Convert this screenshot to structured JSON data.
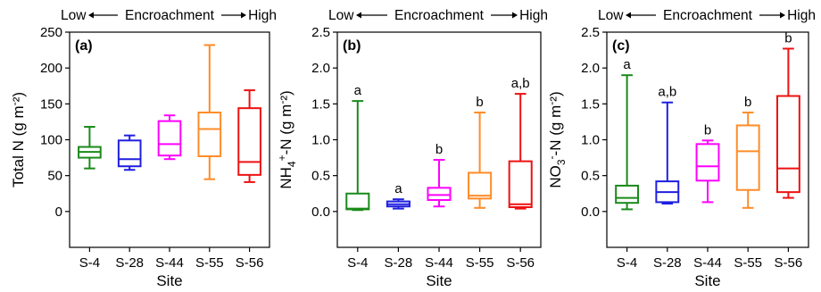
{
  "chart_data": [
    {
      "type": "box",
      "panel_label": "(a)",
      "encroachment": {
        "low": "Low",
        "text": "Encroachment",
        "high": "High"
      },
      "xlabel": "Site",
      "ylabel": "Total N (g m⁻²)",
      "ylim": [
        -50,
        250
      ],
      "yticks": [
        "0",
        "50",
        "100",
        "150",
        "200",
        "250"
      ],
      "ytick_values": [
        0,
        50,
        100,
        150,
        200,
        250
      ],
      "categories": [
        "S-4",
        "S-28",
        "S-44",
        "S-55",
        "S-56"
      ],
      "colors": [
        "#1a8a1a",
        "#1f1fe0",
        "#ff00ff",
        "#ff8c28",
        "#ee1111"
      ],
      "boxes": [
        {
          "whislo": 60,
          "q1": 75,
          "med": 83,
          "q3": 90,
          "whishi": 118
        },
        {
          "whislo": 58,
          "q1": 63,
          "med": 73,
          "q3": 99,
          "whishi": 106
        },
        {
          "whislo": 73,
          "q1": 78,
          "med": 94,
          "q3": 126,
          "whishi": 134
        },
        {
          "whislo": 45,
          "q1": 77,
          "med": 115,
          "q3": 138,
          "whishi": 232
        },
        {
          "whislo": 41,
          "q1": 51,
          "med": 69,
          "q3": 144,
          "whishi": 169
        }
      ],
      "significance": [
        "",
        "",
        "",
        "",
        ""
      ]
    },
    {
      "type": "box",
      "panel_label": "(b)",
      "encroachment": {
        "low": "Low",
        "text": "Encroachment",
        "high": "High"
      },
      "xlabel": "Site",
      "ylabel": "NH₄⁺-N (g m⁻²)",
      "ylim": [
        -0.5,
        2.5
      ],
      "yticks": [
        "0.0",
        "0.5",
        "1.0",
        "1.5",
        "2.0",
        "2.5"
      ],
      "ytick_values": [
        0,
        0.5,
        1.0,
        1.5,
        2.0,
        2.5
      ],
      "categories": [
        "S-4",
        "S-28",
        "S-44",
        "S-55",
        "S-56"
      ],
      "colors": [
        "#1a8a1a",
        "#1f1fe0",
        "#ff00ff",
        "#ff8c28",
        "#ee1111"
      ],
      "boxes": [
        {
          "whislo": 0.02,
          "q1": 0.03,
          "med": 0.04,
          "q3": 0.25,
          "whishi": 1.54
        },
        {
          "whislo": 0.04,
          "q1": 0.07,
          "med": 0.1,
          "q3": 0.14,
          "whishi": 0.17
        },
        {
          "whislo": 0.07,
          "q1": 0.16,
          "med": 0.23,
          "q3": 0.33,
          "whishi": 0.72
        },
        {
          "whislo": 0.05,
          "q1": 0.18,
          "med": 0.22,
          "q3": 0.54,
          "whishi": 1.38
        },
        {
          "whislo": 0.04,
          "q1": 0.06,
          "med": 0.1,
          "q3": 0.7,
          "whishi": 1.64
        }
      ],
      "significance": [
        "a",
        "a",
        "b",
        "b",
        "a,b"
      ]
    },
    {
      "type": "box",
      "panel_label": "(c)",
      "encroachment": {
        "low": "Low",
        "text": "Encroachment",
        "high": "High"
      },
      "xlabel": "Site",
      "ylabel": "NO₃⁻-N (g m⁻²)",
      "ylim": [
        -0.5,
        2.5
      ],
      "yticks": [
        "0.0",
        "0.5",
        "1.0",
        "1.5",
        "2.0",
        "2.5"
      ],
      "ytick_values": [
        0,
        0.5,
        1.0,
        1.5,
        2.0,
        2.5
      ],
      "categories": [
        "S-4",
        "S-28",
        "S-44",
        "S-55",
        "S-56"
      ],
      "colors": [
        "#1a8a1a",
        "#1f1fe0",
        "#ff00ff",
        "#ff8c28",
        "#ee1111"
      ],
      "boxes": [
        {
          "whislo": 0.03,
          "q1": 0.12,
          "med": 0.19,
          "q3": 0.36,
          "whishi": 1.9
        },
        {
          "whislo": 0.11,
          "q1": 0.13,
          "med": 0.27,
          "q3": 0.42,
          "whishi": 1.52
        },
        {
          "whislo": 0.13,
          "q1": 0.43,
          "med": 0.63,
          "q3": 0.94,
          "whishi": 0.99
        },
        {
          "whislo": 0.05,
          "q1": 0.3,
          "med": 0.84,
          "q3": 1.2,
          "whishi": 1.38
        },
        {
          "whislo": 0.19,
          "q1": 0.27,
          "med": 0.6,
          "q3": 1.61,
          "whishi": 2.27
        }
      ],
      "significance": [
        "a",
        "a,b",
        "b",
        "b",
        "b"
      ]
    }
  ]
}
